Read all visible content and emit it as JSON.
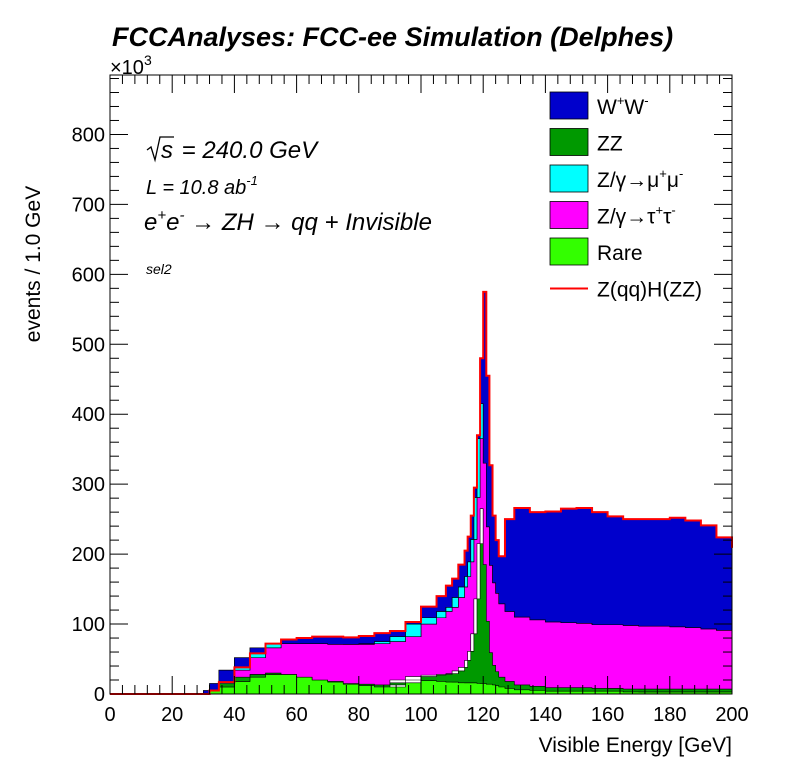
{
  "chart_data": {
    "type": "area",
    "title": "FCCAnalyses: FCC-ee Simulation (Delphes)",
    "xlabel": "Visible Energy [GeV]",
    "ylabel": "events / 1.0 GeV",
    "y_multiplier_label": "×10",
    "y_multiplier_exp": "3",
    "xlim": [
      0,
      200
    ],
    "ylim": [
      0,
      885
    ],
    "x_ticks": [
      "0",
      "20",
      "40",
      "60",
      "80",
      "100",
      "120",
      "140",
      "160",
      "180",
      "200"
    ],
    "y_ticks": [
      "0",
      "100",
      "200",
      "300",
      "400",
      "500",
      "600",
      "700",
      "800"
    ],
    "annotations": {
      "sqrt_s_value": " = 240.0 GeV",
      "lumi_prefix": "L = 10.8 ab",
      "lumi_exp": "-1",
      "process": "qq + Invisible",
      "selection": "sel2"
    },
    "legend_position": "top-right",
    "x": [
      0,
      30,
      32,
      35,
      40,
      45,
      50,
      55,
      60,
      65,
      70,
      75,
      80,
      85,
      90,
      95,
      100,
      105,
      108,
      110,
      112,
      114,
      115,
      116,
      117,
      118,
      119,
      120,
      121,
      122,
      123,
      124,
      125,
      127,
      130,
      135,
      140,
      145,
      150,
      155,
      160,
      165,
      170,
      175,
      180,
      185,
      190,
      195,
      200
    ],
    "series": [
      {
        "name": "Rare",
        "color": "#33ff00",
        "values": [
          0,
          0,
          4,
          10,
          18,
          24,
          28,
          30,
          28,
          24,
          20,
          17,
          14,
          12,
          10,
          16,
          20,
          19,
          18,
          17,
          17,
          16,
          16,
          16,
          16,
          16,
          15,
          15,
          15,
          14,
          14,
          13,
          12,
          10,
          8,
          6,
          5,
          4,
          4,
          4,
          4,
          4,
          3,
          3,
          3,
          3,
          3,
          3,
          3
        ]
      },
      {
        "name": "ZZ",
        "color": "#009900",
        "values": [
          0,
          0,
          0,
          0,
          0,
          0,
          0,
          0,
          0,
          0,
          0,
          1,
          1,
          2,
          3,
          4,
          5,
          8,
          10,
          12,
          16,
          22,
          32,
          45,
          70,
          120,
          200,
          250,
          170,
          90,
          45,
          28,
          20,
          14,
          10,
          7,
          6,
          5,
          5,
          5,
          4,
          4,
          4,
          4,
          4,
          4,
          4,
          4,
          4
        ]
      },
      {
        "name": "Z/γ→τ+τ-",
        "color": "#ff00ff",
        "values": [
          0,
          0,
          1,
          5,
          16,
          28,
          38,
          42,
          44,
          48,
          52,
          53,
          56,
          58,
          62,
          62,
          75,
          82,
          90,
          95,
          105,
          115,
          120,
          128,
          135,
          145,
          150,
          150,
          145,
          135,
          125,
          118,
          112,
          105,
          100,
          97,
          95,
          94,
          93,
          92,
          91,
          91,
          91,
          90,
          90,
          89,
          88,
          86,
          84
        ]
      },
      {
        "name": "Z/γ→μ+μ-",
        "color": "#00ffff",
        "values": [
          0,
          0,
          0,
          0,
          0,
          0,
          0,
          0,
          0,
          0,
          0,
          0,
          0,
          0,
          0,
          0,
          0,
          0,
          0,
          0,
          0,
          0,
          0,
          0,
          0,
          0,
          0,
          0,
          0,
          0,
          0,
          0,
          0,
          0,
          0,
          0,
          0,
          0,
          0,
          0,
          0,
          0,
          0,
          0,
          0,
          0,
          0,
          0,
          0
        ]
      },
      {
        "name": "W+W-",
        "color": "#0000cc",
        "values": [
          0,
          0,
          0,
          2,
          4,
          6,
          6,
          6,
          8,
          10,
          10,
          10,
          12,
          15,
          15,
          21,
          25,
          31,
          37,
          41,
          47,
          52,
          57,
          66,
          74,
          89,
          115,
          160,
          125,
          88,
          71,
          61,
          53,
          121,
          148,
          150,
          155,
          162,
          164,
          159,
          155,
          151,
          152,
          153,
          155,
          152,
          146,
          131,
          118
        ]
      },
      {
        "name": "Z(qq)H(ZZ)",
        "color": "#ff0000",
        "type": "line",
        "values": [
          0,
          0,
          5,
          17,
          38,
          58,
          72,
          78,
          80,
          82,
          82,
          81,
          83,
          87,
          90,
          103,
          125,
          140,
          155,
          165,
          185,
          205,
          225,
          255,
          295,
          370,
          480,
          575,
          455,
          327,
          255,
          220,
          197,
          250,
          266,
          260,
          261,
          265,
          266,
          260,
          254,
          250,
          250,
          250,
          252,
          248,
          241,
          224,
          209
        ]
      }
    ],
    "legend": [
      {
        "label": "W",
        "sup1": "+",
        "mid": "W",
        "sup2": "-",
        "color": "#0000cc"
      },
      {
        "label": "ZZ",
        "sup1": "",
        "mid": "",
        "sup2": "",
        "color": "#009900"
      },
      {
        "label": "Z/γ→μ",
        "sup1": "+",
        "mid": "μ",
        "sup2": "-",
        "color": "#00ffff"
      },
      {
        "label": "Z/γ→τ",
        "sup1": "+",
        "mid": "τ",
        "sup2": "-",
        "color": "#ff00ff"
      },
      {
        "label": "Rare",
        "sup1": "",
        "mid": "",
        "sup2": "",
        "color": "#33ff00"
      },
      {
        "label": "Z(qq)H(ZZ)",
        "sup1": "",
        "mid": "",
        "sup2": "",
        "color": "#ff0000",
        "line": true
      }
    ]
  }
}
